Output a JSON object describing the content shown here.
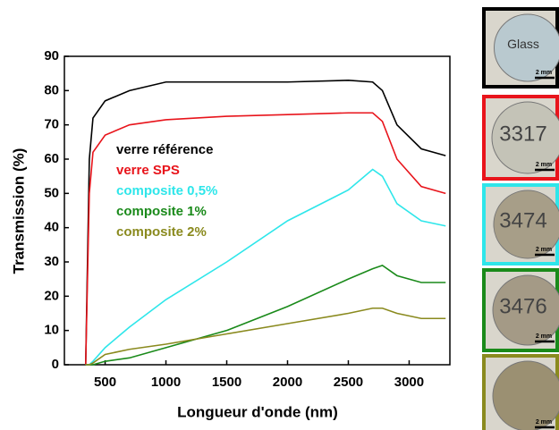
{
  "chart_data": {
    "type": "line",
    "x_label": "Longueur d'onde (nm)",
    "y_label": "Transmission (%)",
    "x": [
      340,
      370,
      400,
      500,
      700,
      1000,
      1500,
      2000,
      2500,
      2700,
      2780,
      2900,
      3100,
      3300
    ],
    "series": [
      {
        "name": "verre référence",
        "color": "#000000",
        "values": [
          0,
          60,
          72,
          77,
          80,
          82.5,
          82.5,
          82.5,
          83,
          82.5,
          80,
          70,
          63,
          61
        ]
      },
      {
        "name": "verre SPS",
        "color": "#e8141b",
        "values": [
          0,
          50,
          62,
          67,
          70,
          71.5,
          72.5,
          73,
          73.5,
          73.5,
          71,
          60,
          52,
          50
        ]
      },
      {
        "name": "composite 0,5%",
        "color": "#2ee6ea",
        "values": [
          0,
          0,
          1,
          5,
          11,
          19,
          30,
          42,
          51,
          57,
          55,
          47,
          42,
          40.5
        ]
      },
      {
        "name": "composite 1%",
        "color": "#1a8a1a",
        "values": [
          0,
          0,
          0,
          1,
          2,
          5,
          10,
          17,
          25,
          28,
          29,
          26,
          24,
          24
        ]
      },
      {
        "name": "composite 2%",
        "color": "#8a8a1e",
        "values": [
          0,
          0,
          0.5,
          3,
          4.5,
          6,
          9,
          12,
          15,
          16.5,
          16.5,
          15,
          13.5,
          13.5
        ]
      }
    ],
    "xlim": [
      165,
      3335
    ],
    "ylim": [
      0,
      90
    ],
    "xticks": [
      500,
      1000,
      1500,
      2000,
      2500,
      3000
    ],
    "yticks": [
      0,
      10,
      20,
      30,
      40,
      50,
      60,
      70,
      80,
      90
    ]
  },
  "samples": {
    "labels": [
      "Glass",
      "3317",
      "3474",
      "3476"
    ],
    "scale_bar": "2 mm"
  }
}
